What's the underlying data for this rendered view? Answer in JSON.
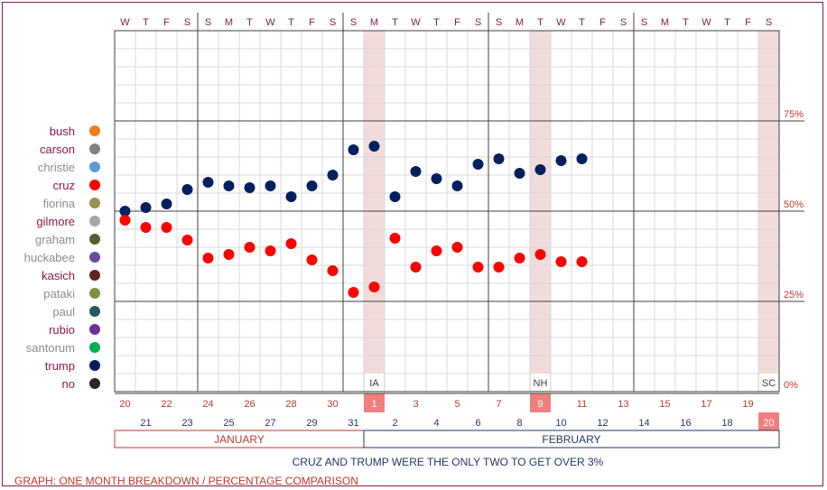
{
  "chart_data": {
    "type": "scatter",
    "title": "",
    "xlabel": "",
    "ylabel": "",
    "ylim": [
      0,
      100
    ],
    "weekday_letters": [
      "W",
      "T",
      "F",
      "S",
      "S",
      "M",
      "T",
      "W",
      "T",
      "F",
      "S",
      "S",
      "M",
      "T",
      "W",
      "T",
      "F",
      "S",
      "S",
      "M",
      "T",
      "W",
      "T",
      "F",
      "S",
      "S",
      "M",
      "T",
      "W",
      "T",
      "F",
      "S"
    ],
    "dates": [
      {
        "day": "20",
        "month": "JANUARY"
      },
      {
        "day": "21",
        "month": "JANUARY"
      },
      {
        "day": "22",
        "month": "JANUARY"
      },
      {
        "day": "23",
        "month": "JANUARY"
      },
      {
        "day": "24",
        "month": "JANUARY"
      },
      {
        "day": "25",
        "month": "JANUARY"
      },
      {
        "day": "26",
        "month": "JANUARY"
      },
      {
        "day": "27",
        "month": "JANUARY"
      },
      {
        "day": "28",
        "month": "JANUARY"
      },
      {
        "day": "29",
        "month": "JANUARY"
      },
      {
        "day": "30",
        "month": "JANUARY"
      },
      {
        "day": "31",
        "month": "JANUARY"
      },
      {
        "day": "1",
        "month": "FEBRUARY"
      },
      {
        "day": "2",
        "month": "FEBRUARY"
      },
      {
        "day": "3",
        "month": "FEBRUARY"
      },
      {
        "day": "4",
        "month": "FEBRUARY"
      },
      {
        "day": "5",
        "month": "FEBRUARY"
      },
      {
        "day": "6",
        "month": "FEBRUARY"
      },
      {
        "day": "7",
        "month": "FEBRUARY"
      },
      {
        "day": "8",
        "month": "FEBRUARY"
      },
      {
        "day": "9",
        "month": "FEBRUARY"
      },
      {
        "day": "10",
        "month": "FEBRUARY"
      },
      {
        "day": "11",
        "month": "FEBRUARY"
      },
      {
        "day": "12",
        "month": "FEBRUARY"
      },
      {
        "day": "13",
        "month": "FEBRUARY"
      },
      {
        "day": "14",
        "month": "FEBRUARY"
      },
      {
        "day": "15",
        "month": "FEBRUARY"
      },
      {
        "day": "16",
        "month": "FEBRUARY"
      },
      {
        "day": "17",
        "month": "FEBRUARY"
      },
      {
        "day": "18",
        "month": "FEBRUARY"
      },
      {
        "day": "19",
        "month": "FEBRUARY"
      },
      {
        "day": "20",
        "month": "FEBRUARY"
      }
    ],
    "months": [
      "JANUARY",
      "FEBRUARY"
    ],
    "y_ticks": [
      "0%",
      "25%",
      "50%",
      "75%"
    ],
    "y_tick_values": [
      0,
      25,
      50,
      75
    ],
    "events": [
      {
        "label": "IA",
        "day": "1",
        "month": "FEBRUARY"
      },
      {
        "label": "NH",
        "day": "9",
        "month": "FEBRUARY"
      },
      {
        "label": "SC",
        "day": "20",
        "month": "FEBRUARY"
      }
    ],
    "legend": [
      {
        "name": "bush",
        "color": "#f07c1c"
      },
      {
        "name": "carson",
        "color": "#808080"
      },
      {
        "name": "christie",
        "color": "#5b9bd5"
      },
      {
        "name": "cruz",
        "color": "#ff0000"
      },
      {
        "name": "fiorina",
        "color": "#9c8f52"
      },
      {
        "name": "gilmore",
        "color": "#a6a6a6"
      },
      {
        "name": "graham",
        "color": "#4f6228"
      },
      {
        "name": "huckabee",
        "color": "#6b4c9a"
      },
      {
        "name": "kasich",
        "color": "#632523"
      },
      {
        "name": "pataki",
        "color": "#77933c"
      },
      {
        "name": "paul",
        "color": "#215967"
      },
      {
        "name": "rubio",
        "color": "#7030a0"
      },
      {
        "name": "santorum",
        "color": "#00b050"
      },
      {
        "name": "trump",
        "color": "#002060"
      },
      {
        "name": "no",
        "color": "#262626"
      }
    ],
    "series": [
      {
        "name": "trump",
        "color": "#002060",
        "values": [
          50,
          51,
          52,
          56,
          58,
          57,
          56.5,
          57,
          54,
          57,
          60,
          67,
          68,
          54,
          61,
          59,
          57,
          63,
          64.5,
          60.5,
          61.5,
          64,
          64.5,
          null,
          null,
          null,
          null,
          null,
          null,
          null,
          null,
          null
        ]
      },
      {
        "name": "cruz",
        "color": "#ff0000",
        "values": [
          47.5,
          45.5,
          45.5,
          42,
          37,
          38,
          40,
          39,
          41,
          36.5,
          33.5,
          27.5,
          29,
          42.5,
          34.5,
          39,
          40,
          34.5,
          34.5,
          37,
          38,
          36,
          36,
          null,
          null,
          null,
          null,
          null,
          null,
          null,
          null,
          null
        ]
      }
    ]
  },
  "caption": "CRUZ AND TRUMP WERE THE ONLY TWO TO GET OVER 3%",
  "footer": "GRAPH: ONE MONTH BREAKDOWN / PERCENTAGE COMPARISON"
}
